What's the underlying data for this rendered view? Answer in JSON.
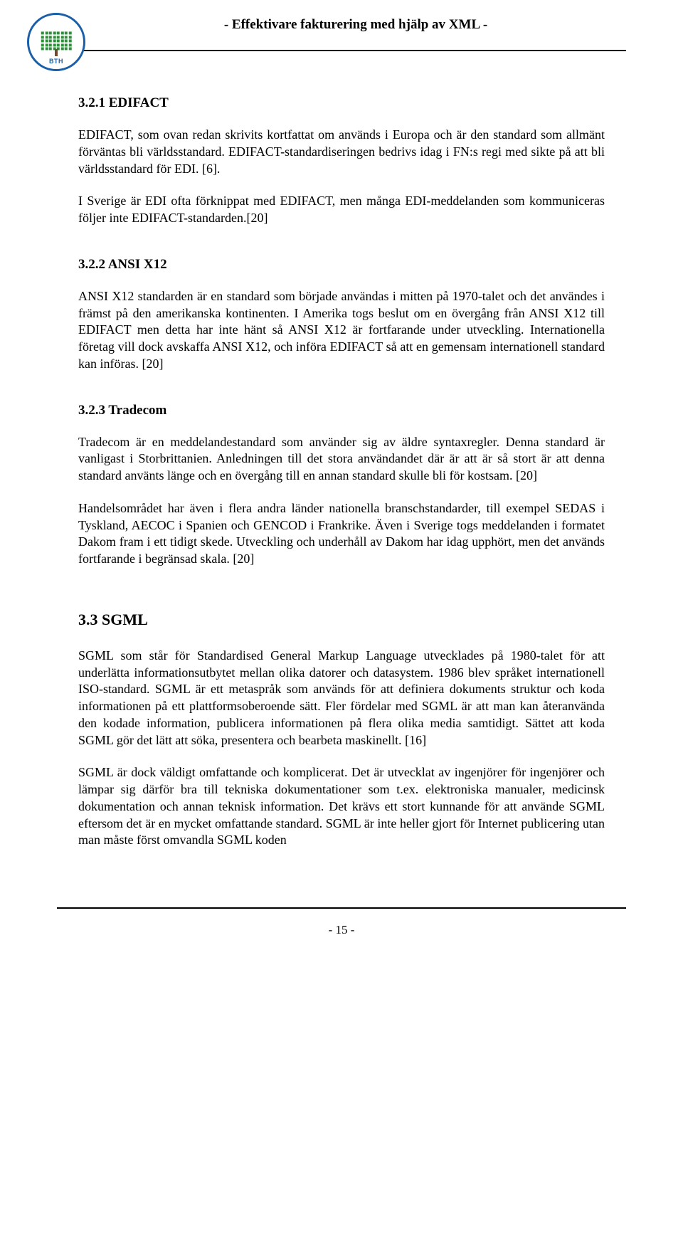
{
  "header": {
    "title": "-  Effektivare fakturering med hjälp av XML  -",
    "logo_bth": "BTH"
  },
  "sections": {
    "s321_title": "3.2.1 EDIFACT",
    "s321_p1": "EDIFACT, som ovan redan skrivits kortfattat om används i Europa och är den standard som allmänt förväntas bli världsstandard. EDIFACT-standardiseringen bedrivs idag i FN:s regi med sikte på att bli världsstandard för EDI. [6].",
    "s321_p2": "I Sverige är EDI ofta förknippat med EDIFACT, men många EDI-meddelanden som kommuniceras följer inte EDIFACT-standarden.[20]",
    "s322_title": "3.2.2 ANSI X12",
    "s322_p1": "ANSI X12 standarden är en standard som började användas i mitten på 1970-talet och det användes i främst på den amerikanska kontinenten. I Amerika togs beslut om en övergång från ANSI X12 till EDIFACT men detta har inte hänt så ANSI X12 är fortfarande under utveckling. Internationella företag vill dock avskaffa ANSI X12, och införa EDIFACT så att en gemensam internationell standard kan införas. [20]",
    "s323_title": "3.2.3 Tradecom",
    "s323_p1": "Tradecom är en meddelandestandard som använder sig av äldre syntaxregler. Denna standard är vanligast i Storbrittanien. Anledningen till det stora användandet där är att är så stort är att denna standard använts länge och en övergång till en annan standard skulle bli för kostsam. [20]",
    "s323_p2": "Handelsområdet har även i flera andra länder nationella branschstandarder, till exempel SEDAS i Tyskland, AECOC i Spanien och GENCOD i Frankrike. Även i Sverige togs meddelanden i formatet Dakom fram i ett tidigt skede. Utveckling och underhåll av Dakom har idag upphört, men det används fortfarande i begränsad skala. [20]",
    "s33_title": "3.3 SGML",
    "s33_p1": "SGML som står för Standardised General Markup Language utvecklades på 1980-talet för att underlätta informationsutbytet mellan olika datorer och datasystem. 1986 blev språket internationell ISO-standard. SGML är ett metaspråk som används för att definiera dokuments struktur och koda informationen på ett plattformsoberoende sätt. Fler fördelar med SGML är att man kan återanvända den kodade information, publicera informationen på flera olika media samtidigt. Sättet att koda SGML gör det lätt att söka, presentera och bearbeta maskinellt. [16]",
    "s33_p2": "SGML är dock väldigt omfattande och komplicerat. Det är utvecklat av ingenjörer för ingenjörer och lämpar sig därför bra till tekniska dokumentationer som t.ex. elektroniska manualer, medicinsk dokumentation och annan teknisk information. Det krävs ett stort kunnande för att använde SGML eftersom det är en mycket omfattande standard. SGML är inte heller gjort för Internet publicering utan man måste först omvandla SGML koden"
  },
  "page_number": "- 15 -"
}
